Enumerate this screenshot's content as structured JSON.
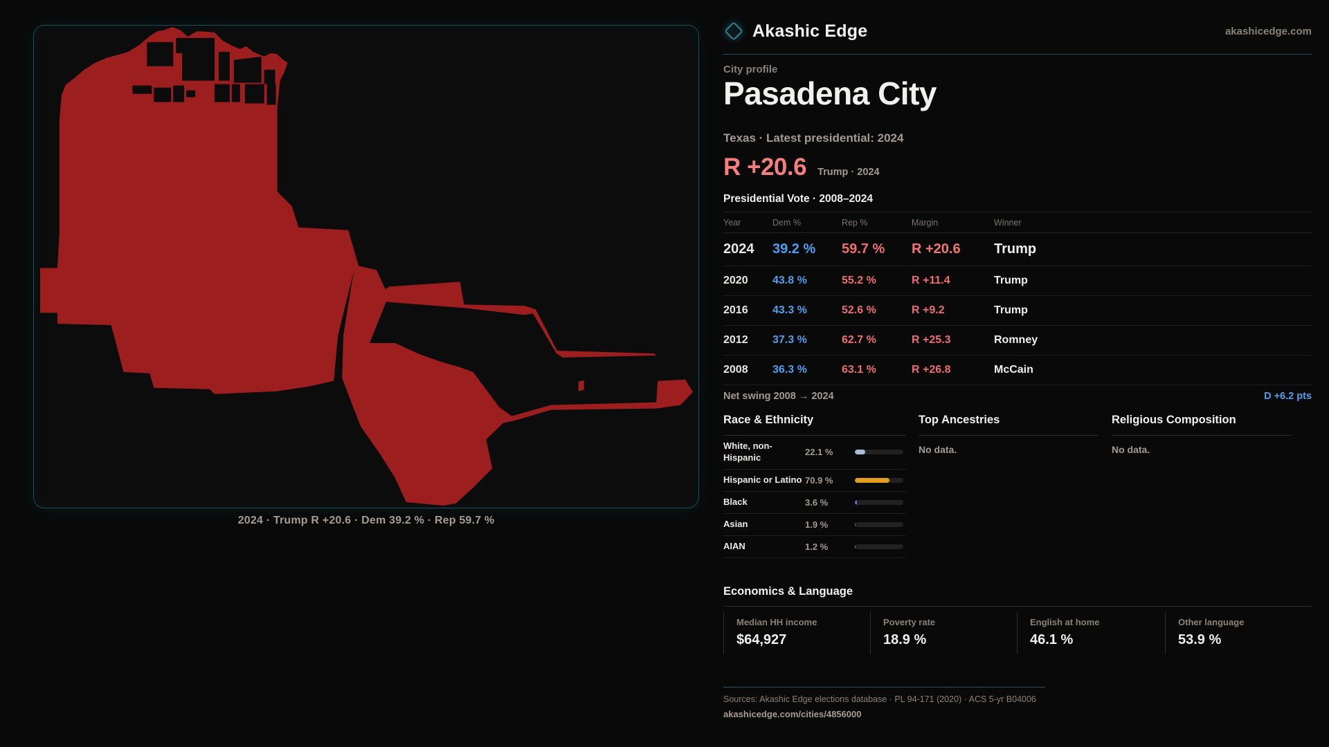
{
  "brand": {
    "name": "Akashic Edge",
    "domain": "akashicedge.com"
  },
  "profile": {
    "kicker": "City profile",
    "title": "Pasadena City",
    "subtitle": "Texas · Latest presidential: 2024",
    "headline_margin": "R +20.6",
    "headline_context": "Trump · 2024"
  },
  "map": {
    "caption": "2024 · Trump R +20.6 · Dem 39.2 % · Rep 59.7 %",
    "shape_color": "#9d1e1e"
  },
  "election_table": {
    "title": "Presidential Vote · 2008–2024",
    "columns": [
      "Year",
      "Dem %",
      "Rep %",
      "Margin",
      "Winner"
    ],
    "rows": [
      {
        "year": "2024",
        "dem": "39.2 %",
        "rep": "59.7 %",
        "margin": "R +20.6",
        "winner": "Trump",
        "highlight": true
      },
      {
        "year": "2020",
        "dem": "43.8 %",
        "rep": "55.2 %",
        "margin": "R +11.4",
        "winner": "Trump",
        "highlight": false
      },
      {
        "year": "2016",
        "dem": "43.3 %",
        "rep": "52.6 %",
        "margin": "R +9.2",
        "winner": "Trump",
        "highlight": false
      },
      {
        "year": "2012",
        "dem": "37.3 %",
        "rep": "62.7 %",
        "margin": "R +25.3",
        "winner": "Romney",
        "highlight": false
      },
      {
        "year": "2008",
        "dem": "36.3 %",
        "rep": "63.1 %",
        "margin": "R +26.8",
        "winner": "McCain",
        "highlight": false
      }
    ],
    "net_swing_label": "Net swing 2008 → 2024",
    "net_swing_value": "D +6.2 pts"
  },
  "demographics": {
    "race": {
      "title": "Race & Ethnicity",
      "rows": [
        {
          "label": "White, non-Hispanic",
          "value": "22.1 %",
          "pct": 22.1,
          "color": "#a9bdd4"
        },
        {
          "label": "Hispanic or Latino",
          "value": "70.9 %",
          "pct": 70.9,
          "color": "#e29c1e"
        },
        {
          "label": "Black",
          "value": "3.6 %",
          "pct": 3.6,
          "color": "#7b5de8"
        },
        {
          "label": "Asian",
          "value": "1.9 %",
          "pct": 1.9,
          "color": "#2ea465"
        },
        {
          "label": "AIAN",
          "value": "1.2 %",
          "pct": 1.2,
          "color": "#dd7a35"
        }
      ]
    },
    "ancestries": {
      "title": "Top Ancestries",
      "empty": "No data."
    },
    "religion": {
      "title": "Religious Composition",
      "empty": "No data."
    }
  },
  "economics": {
    "title": "Economics & Language",
    "stats": [
      {
        "label": "Median HH income",
        "value": "$64,927"
      },
      {
        "label": "Poverty rate",
        "value": "18.9 %"
      },
      {
        "label": "English at home",
        "value": "46.1 %"
      },
      {
        "label": "Other language",
        "value": "53.9 %"
      }
    ]
  },
  "footer": {
    "sources": "Sources: Akashic Edge elections database · PL 94-171 (2020) · ACS 5-yr B04006",
    "permalink": "akashicedge.com/cities/4856000"
  },
  "colors": {
    "dem": "#4f9ff0",
    "rep": "#ef6d6d",
    "accent_teal": "#1d4b56"
  }
}
